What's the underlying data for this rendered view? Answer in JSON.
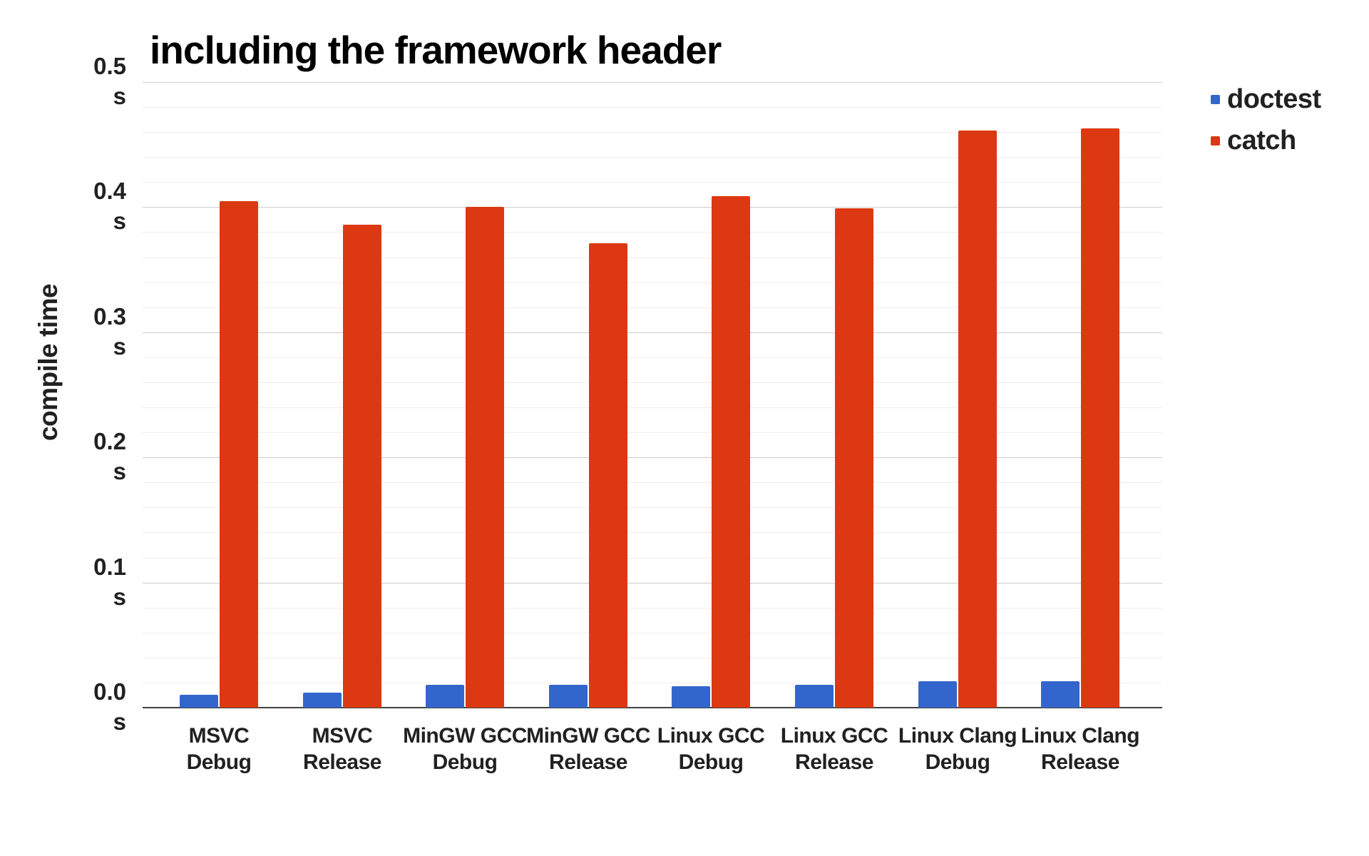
{
  "chart_data": {
    "type": "bar",
    "title": "including the framework header",
    "ylabel": "compile time",
    "unit": "s",
    "ylim": [
      0,
      0.5
    ],
    "y_major_step": 0.1,
    "y_minor_step": 0.02,
    "grid": true,
    "legend_position": "right",
    "categories": [
      "MSVC Debug",
      "MSVC Release",
      "MinGW GCC Debug",
      "MinGW GCC Release",
      "Linux GCC Debug",
      "Linux GCC Release",
      "Linux Clang Debug",
      "Linux Clang Release"
    ],
    "categories_lines": [
      [
        "MSVC",
        "Debug"
      ],
      [
        "MSVC",
        "Release"
      ],
      [
        "MinGW GCC",
        "Debug"
      ],
      [
        "MinGW GCC",
        "Release"
      ],
      [
        "Linux GCC",
        "Debug"
      ],
      [
        "Linux GCC",
        "Release"
      ],
      [
        "Linux Clang",
        "Debug"
      ],
      [
        "Linux Clang",
        "Release"
      ]
    ],
    "series": [
      {
        "name": "doctest",
        "color": "#3366CC",
        "values": [
          0.01,
          0.012,
          0.018,
          0.018,
          0.017,
          0.018,
          0.021,
          0.021
        ]
      },
      {
        "name": "catch",
        "color": "#DC3912",
        "values": [
          0.405,
          0.386,
          0.4,
          0.371,
          0.409,
          0.399,
          0.461,
          0.463
        ]
      }
    ],
    "y_ticks": [
      "0.0",
      "0.1",
      "0.2",
      "0.3",
      "0.4",
      "0.5"
    ]
  },
  "colors": {
    "background": "#FFFFFF",
    "title_text": "#000000",
    "axis_text": "#212121",
    "gridline_major": "#CCCCCC",
    "gridline_minor": "#EDEDED",
    "baseline": "#424242",
    "doctest": "#3366CC",
    "catch": "#DC3912"
  }
}
